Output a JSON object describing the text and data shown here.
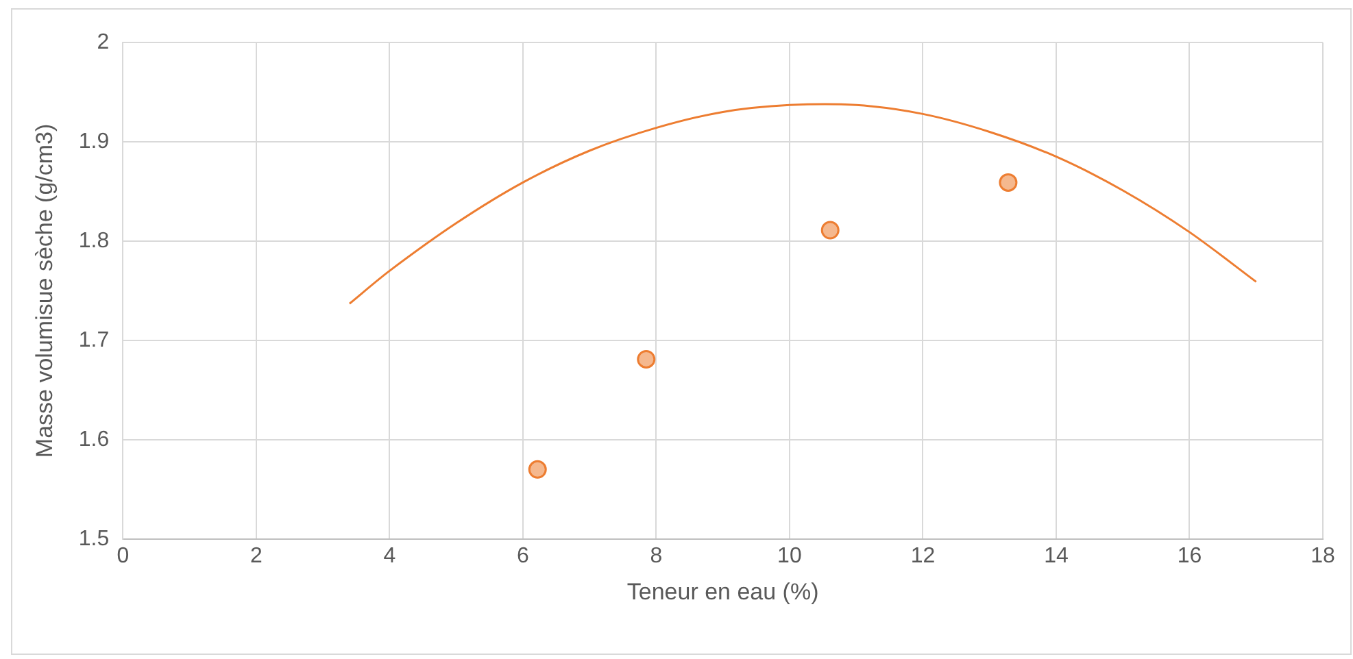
{
  "chart_data": {
    "type": "scatter",
    "xlabel": "Teneur en eau (%)",
    "ylabel": "Masse volumisue sèche (g/cm3)",
    "xlim": [
      0,
      18
    ],
    "xticks": [
      0,
      2,
      4,
      6,
      8,
      10,
      12,
      14,
      16,
      18
    ],
    "ylim": [
      1.5,
      2
    ],
    "yticks": [
      1.5,
      1.6,
      1.7,
      1.8,
      1.9,
      2
    ],
    "grid": true,
    "marker": "circle",
    "series": [
      {
        "color": "#ed7d31",
        "x": [
          6.22,
          7.85,
          10.61,
          13.28
        ],
        "values": [
          1.57,
          1.681,
          1.811,
          1.859
        ]
      },
      {
        "type": "line",
        "color": "#ed7d31",
        "marker": "none",
        "x": [
          3.4,
          4,
          5,
          6,
          7,
          8,
          9,
          10,
          11,
          12,
          13,
          14,
          15,
          16,
          17
        ],
        "values": [
          1.737,
          1.77,
          1.818,
          1.859,
          1.891,
          1.914,
          1.93,
          1.937,
          1.937,
          1.928,
          1.91,
          1.885,
          1.851,
          1.809,
          1.759
        ]
      }
    ]
  }
}
